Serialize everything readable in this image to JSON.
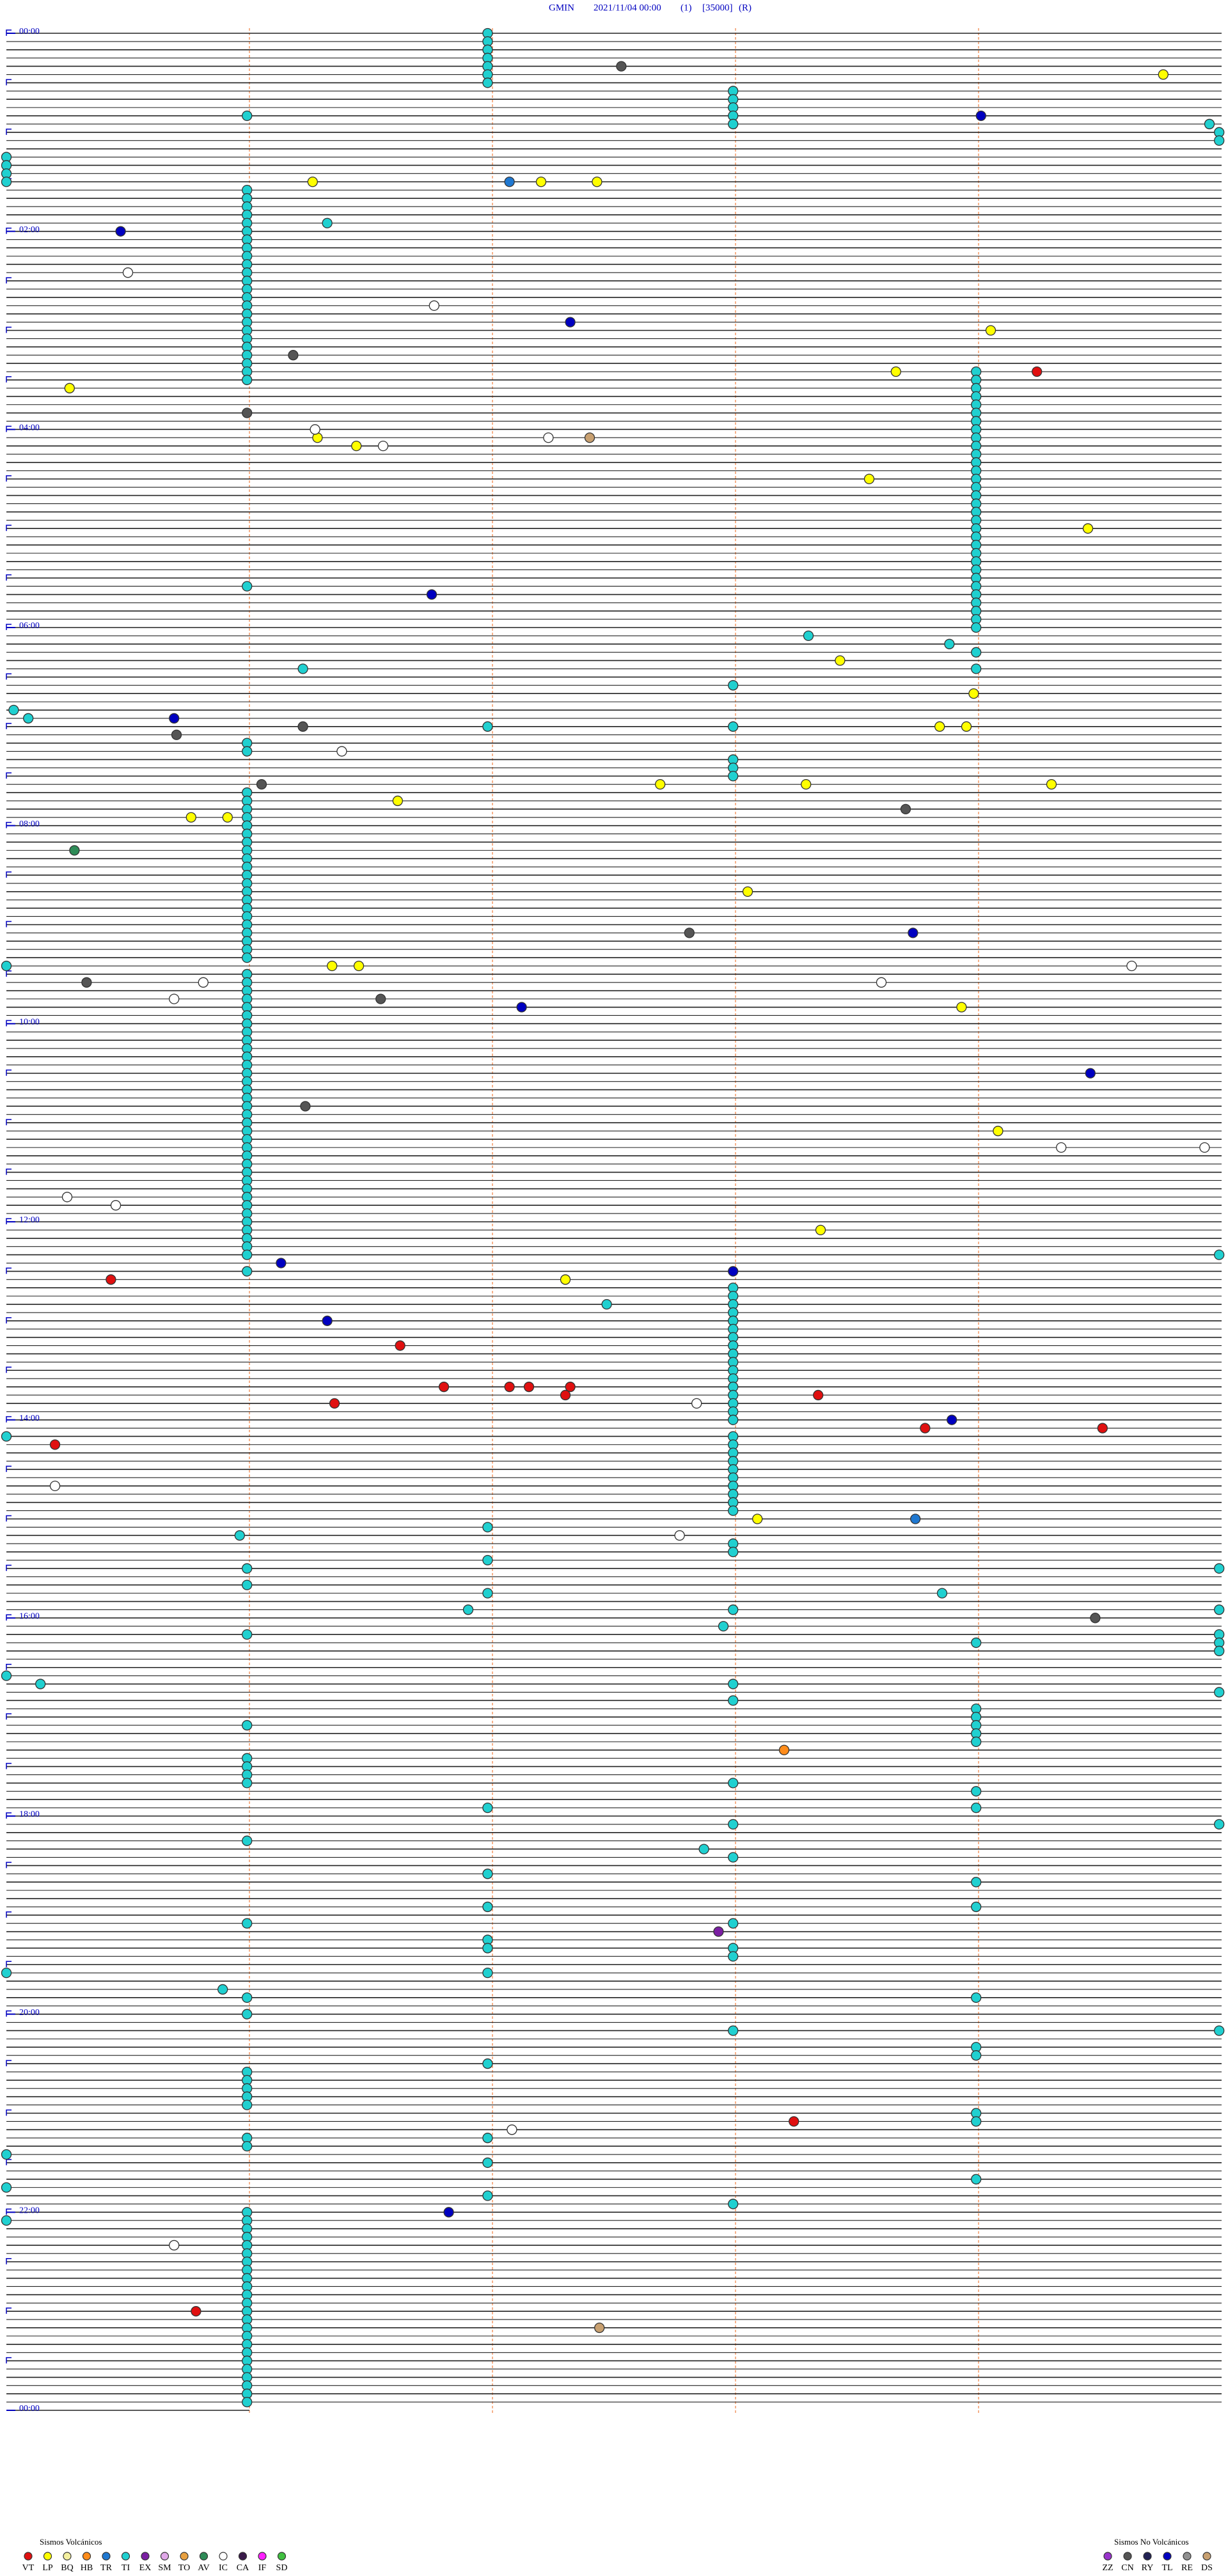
{
  "chart_data": {
    "type": "helicorder",
    "title": [
      "GMIN",
      "2021/11/04 00:00",
      "(1)",
      "[35000]",
      "(R)"
    ],
    "hour_labels": [
      {
        "value": 0,
        "label": "00:00"
      },
      {
        "value": 120,
        "label": "02:00"
      },
      {
        "value": 240,
        "label": "04:00"
      },
      {
        "value": 360,
        "label": "06:00"
      },
      {
        "value": 480,
        "label": "08:00"
      },
      {
        "value": 600,
        "label": "10:00"
      },
      {
        "value": 720,
        "label": "12:00"
      },
      {
        "value": 840,
        "label": "14:00"
      },
      {
        "value": 960,
        "label": "16:00"
      },
      {
        "value": 1080,
        "label": "18:00"
      },
      {
        "value": 1200,
        "label": "20:00"
      },
      {
        "value": 1320,
        "label": "22:00"
      },
      {
        "value": 1440,
        "label": "00:00"
      }
    ],
    "groups": [
      {
        "title": "Sismos Volcánicos",
        "series": [
          {
            "name": "VT",
            "color": "#e01010",
            "x": [
              209.24,
              755.43,
              796.62,
              827.3,
              828.34,
              821.8,
              822.07,
              822.15,
              822.32,
              831.35,
              848.78,
              849.51,
              855.2,
              1268.24,
              1380.78
            ]
          },
          {
            "name": "LP",
            "color": "#ffff00",
            "x": [
              29.76,
              91.26,
              92.2,
              92.43,
              184.05,
              215.26,
              208.66,
              246.28,
              251.44,
              273.55,
              304.45,
              383.43,
              403.98,
              423.84,
              423.95,
              457.69,
              458.29,
              459.3,
              466.61,
              475.76,
              475.91,
              523.05,
              566.34,
              566.45,
              593.93,
              669.08,
              728.35,
              757.3,
              903.09
            ]
          },
          {
            "name": "BQ",
            "color": "#f4f0a0",
            "x": []
          },
          {
            "name": "HB",
            "color": "#ff8c1a",
            "x": [
              1043.2
            ]
          },
          {
            "name": "TR",
            "color": "#1f78d1",
            "x": [
              92.07,
              903.74
            ]
          },
          {
            "name": "TI",
            "color": "#20d0d0",
            "x": [
              1.98,
              6.98,
              11.98,
              16.98,
              21.98,
              26.98,
              31.98,
              37.99,
              42.99,
              47.99,
              52.99,
              57.99,
              50.99,
              59.95,
              64.99,
              69.99,
              75,
              80,
              85,
              90,
              95.99,
              100.99,
              105.99,
              110.99,
              115.99,
              120.99,
              125.99,
              130.99,
              135.99,
              140.99,
              145.99,
              150.99,
              155.99,
              160.99,
              165.99,
              170.99,
              175.99,
              180.99,
              185.99,
              190.99,
              195.99,
              200.99,
              205.99,
              210.99,
              116.32,
              208.99,
              213.99,
              218.99,
              223.99,
              228.99,
              233.99,
              238.99,
              243.99,
              248.99,
              253.99,
              258.99,
              263.99,
              268.99,
              273.99,
              278.99,
              283.99,
              288.99,
              293.99,
              298.99,
              303.99,
              308.99,
              313.99,
              318.99,
              323.99,
              328.99,
              333.99,
              338.99,
              343.99,
              348.99,
              353.99,
              358.99,
              363.99,
              335.99,
              368.3,
              373.88,
              386.22,
              378.99,
              388.99,
              397.99,
              410.03,
              415.09,
              421.98,
              422.99,
              430.99,
              435.99,
              442.99,
              447.99,
              452.99,
              460.99,
              465.99,
              470.99,
              475.99,
              480.99,
              485.99,
              490.99,
              495.99,
              500.99,
              505.99,
              510.99,
              515.99,
              520.99,
              525.99,
              530.99,
              535.99,
              540.99,
              545.99,
              550.99,
              555.99,
              560.99,
              565,
              570.99,
              575.99,
              580.99,
              585.99,
              590.99,
              595.99,
              600.99,
              605.99,
              610.99,
              615.99,
              620.99,
              625.99,
              630.99,
              635.99,
              640.99,
              645.99,
              650.99,
              655.99,
              660.99,
              665.99,
              670.99,
              675.99,
              680.99,
              685.99,
              690.99,
              695.99,
              700.99,
              705.99,
              710.99,
              715.99,
              720.99,
              725.99,
              730.99,
              735.99,
              740.99,
              750.99,
              744.99,
              762.99,
              767.99,
              772.99,
              777.99,
              782.99,
              787.99,
              792.99,
              797.99,
              802.99,
              807.99,
              812.99,
              817.99,
              822.99,
              827.99,
              832.99,
              837.99,
              842.99,
              772.47,
              850,
              852.99,
              857.99,
              862.99,
              867.99,
              872.99,
              877.99,
              882.99,
              887.99,
              892.99,
              897.99,
              906.98,
              910.96,
              917.99,
              922.99,
              926.98,
              930.99,
              934.99,
              940.99,
              946.98,
              948.85,
              956.9,
              957.99,
              959.99,
              967.95,
              970.99,
              978.99,
              974.99,
              979.99,
              984.99,
              995,
              1000.14,
              1009.99,
              1002.99,
              1012.99,
              1018.99,
              1023.99,
              1028.99,
              1033.99,
              1038.99,
              1025.99,
              1045.99,
              1050.99,
              1055.99,
              1060.99,
              1062.99,
              1068.99,
              1076.98,
              1078.99,
              1089.99,
              1087.99,
              1095.99,
              1102.87,
              1107.99,
              1116.98,
              1123.99,
              1145.99,
              1136.98,
              1138.99,
              1147.99,
              1156.98,
              1161.98,
              1162.99,
              1167.99,
              1175,
              1176.98,
              1185.89,
              1190.99,
              1200.99,
              1193.99,
              1214.99,
              1212.99,
              1223.99,
              1228.99,
              1231.98,
              1235.99,
              1240.99,
              1245.99,
              1250.99,
              1255.99,
              1263.99,
              1268.99,
              1285,
              1275.99,
              1280.99,
              1276.98,
              1291.98,
              1303.99,
              1305,
              1311.98,
              1317.99,
              1325,
              1320.99,
              1325.99,
              1330.99,
              1335.99,
              1340.99,
              1345.99,
              1350.99,
              1355.99,
              1360.99,
              1365.99,
              1370.99,
              1375.99,
              1380.99,
              1385.99,
              1390.99,
              1395.99,
              1400.99,
              1405.99,
              1410.99,
              1415.99,
              1420.99,
              1425.99,
              1430.99,
              1435.99
            ]
          },
          {
            "name": "EX",
            "color": "#7a1fa2",
            "x": [
              1152.93
            ]
          },
          {
            "name": "SM",
            "color": "#e0a8e8",
            "x": []
          },
          {
            "name": "TO",
            "color": "#e8a040",
            "x": []
          },
          {
            "name": "AV",
            "color": "#2e8b57",
            "x": [
              495.28
            ]
          },
          {
            "name": "IC",
            "color": "#ffffff",
            "x": [
              145.5,
              166.76,
              247.23,
              251.55,
              436.38,
              575.81,
              585.69,
              578.6,
              569.63,
              679.34,
              679.93,
              705.25,
              710.45,
              832.84,
              880.2,
              912.77,
              1272.08,
              1340.69,
              241.27
            ]
          },
          {
            "name": "CA",
            "color": "#3a1a4a",
            "x": []
          },
          {
            "name": "IF",
            "color": "#ff20ff",
            "x": []
          },
          {
            "name": "SD",
            "color": "#40c040",
            "x": []
          }
        ]
      },
      {
        "title": "Sismos No Volcánicos",
        "series": [
          {
            "name": "ZZ",
            "color": "#9933cc",
            "x": []
          },
          {
            "name": "CN",
            "color": "#555555",
            "x": [
              22.53,
              230.99,
              196.18,
              421.22,
              425.7,
              456.05,
              473.7,
              547.81,
              575.33,
              586.54,
              651.23,
              964.48
            ]
          },
          {
            "name": "RY",
            "color": "#222255",
            "x": []
          },
          {
            "name": "TL",
            "color": "#0000c0",
            "x": [
              120.47,
              54.01,
              177.32,
              341.75,
              415.69,
              548.73,
              592.12,
              634.46,
              746.13,
              752.99,
              781.32,
              843.89,
              1321.82
            ]
          },
          {
            "name": "RE",
            "color": "#909090",
            "x": []
          },
          {
            "name": "DS",
            "color": "#c8a070",
            "x": [
              247.4,
              1392.44
            ]
          }
        ]
      }
    ]
  }
}
